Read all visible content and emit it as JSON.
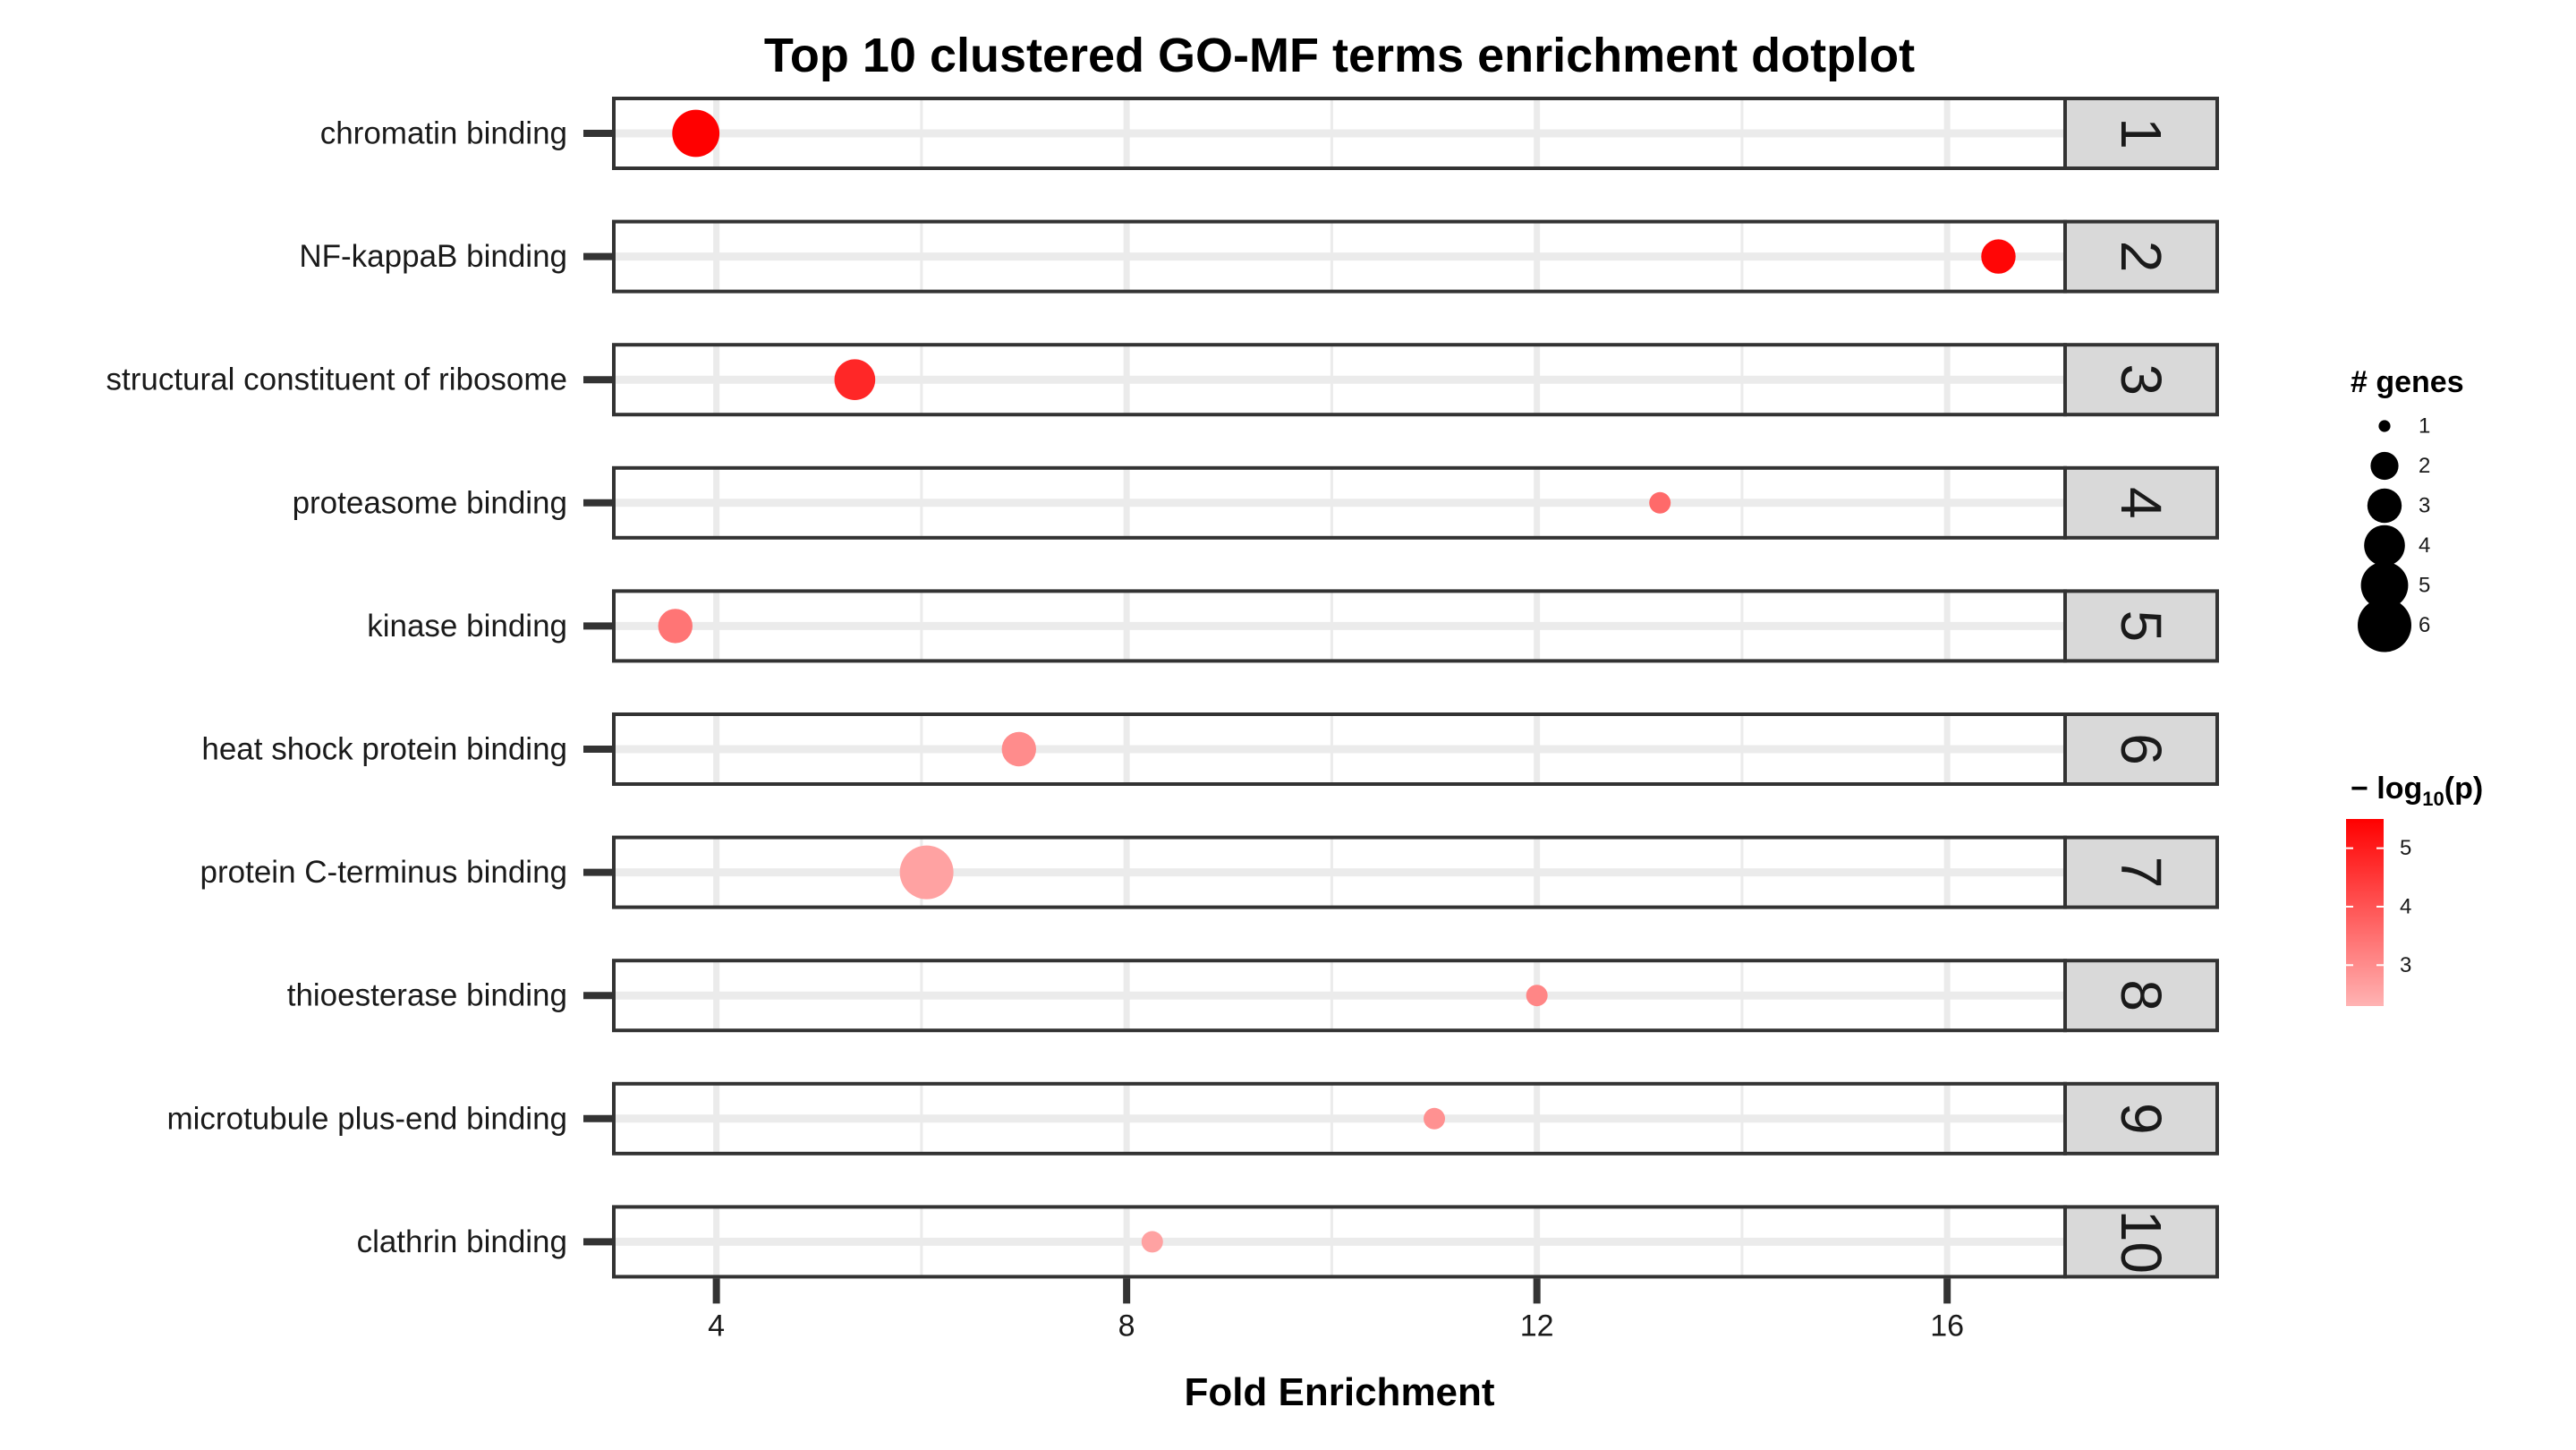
{
  "chart_data": {
    "type": "scatter",
    "title": "Top 10 clustered GO-MF terms enrichment dotplot",
    "xlabel": "Fold Enrichment",
    "ylabel": "",
    "xlim": [
      3,
      17.15
    ],
    "x_ticks": [
      "4",
      "8",
      "12",
      "16"
    ],
    "grid": true,
    "panel_strip_position": "right",
    "terms": [
      {
        "label": "chromatin binding",
        "panel": "1",
        "fold_enrichment": 3.8,
        "genes": 5,
        "neg_log10_p": 5.5
      },
      {
        "label": "NF-kappaB binding",
        "panel": "2",
        "fold_enrichment": 16.5,
        "genes": 3,
        "neg_log10_p": 5.4
      },
      {
        "label": "structural constituent of ribosome",
        "panel": "3",
        "fold_enrichment": 5.35,
        "genes": 4,
        "neg_log10_p": 4.8
      },
      {
        "label": "proteasome binding",
        "panel": "4",
        "fold_enrichment": 13.2,
        "genes": 1,
        "neg_log10_p": 3.6
      },
      {
        "label": "kinase binding",
        "panel": "5",
        "fold_enrichment": 3.6,
        "genes": 3,
        "neg_log10_p": 3.4
      },
      {
        "label": "heat shock protein binding",
        "panel": "6",
        "fold_enrichment": 6.95,
        "genes": 3,
        "neg_log10_p": 3.0
      },
      {
        "label": "protein C-terminus binding",
        "panel": "7",
        "fold_enrichment": 6.05,
        "genes": 6,
        "neg_log10_p": 2.6
      },
      {
        "label": "thioesterase binding",
        "panel": "8",
        "fold_enrichment": 12.0,
        "genes": 1,
        "neg_log10_p": 3.1
      },
      {
        "label": "microtubule plus-end binding",
        "panel": "9",
        "fold_enrichment": 11.0,
        "genes": 1,
        "neg_log10_p": 2.9
      },
      {
        "label": "clathrin binding",
        "panel": "10",
        "fold_enrichment": 8.25,
        "genes": 1,
        "neg_log10_p": 2.6
      }
    ],
    "size_legend": {
      "title": "# genes",
      "values": [
        1,
        2,
        3,
        4,
        5,
        6
      ],
      "labels": [
        "1",
        "2",
        "3",
        "4",
        "5",
        "6"
      ],
      "position": "right"
    },
    "color_legend": {
      "title_prefix": "− log",
      "title_subscript": "10",
      "title_suffix": "(p)",
      "ticks": [
        "5",
        "4",
        "3"
      ],
      "tick_values": [
        5,
        4,
        3
      ],
      "range": [
        2.3,
        5.5
      ],
      "low_color": "#ffb3b3",
      "high_color": "#ff0000",
      "position": "right"
    }
  },
  "colors": {
    "panel_border": "#333333",
    "grid": "#ebebeb",
    "strip_fill": "#d9d9d9",
    "text": "#000000",
    "tick_text": "#1a1a1a"
  }
}
